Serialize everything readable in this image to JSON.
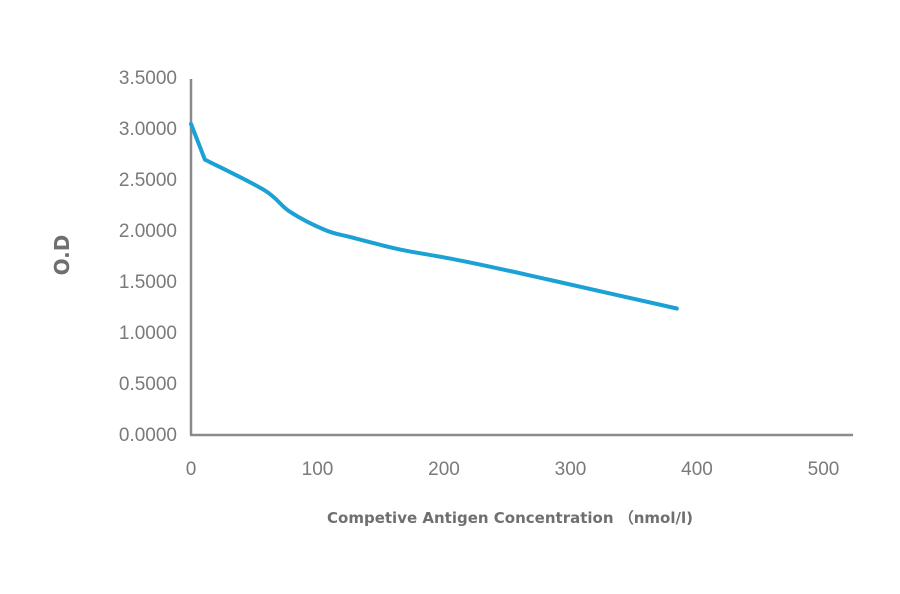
{
  "chart_data": {
    "type": "line",
    "title": "",
    "xlabel": "Competive Antigen Concentration （nmol/l)",
    "ylabel": "O.D",
    "xlim": [
      0,
      500
    ],
    "ylim": [
      0,
      3.5
    ],
    "x_ticks": [
      "0",
      "100",
      "200",
      "300",
      "400",
      "500"
    ],
    "y_ticks": [
      "0.0000",
      "0.5000",
      "1.0000",
      "1.5000",
      "2.0000",
      "2.5000",
      "3.0000",
      "3.5000"
    ],
    "grid": false,
    "legend": null,
    "series": [
      {
        "name": "O.D",
        "color": "#1ba1d4",
        "x": [
          0,
          11,
          58,
          78,
          106,
          126,
          165,
          205,
          244,
          284,
          384
        ],
        "y": [
          3.04,
          2.69,
          2.39,
          2.18,
          2.0,
          1.93,
          1.81,
          1.72,
          1.62,
          1.51,
          1.23
        ]
      }
    ]
  },
  "colors": {
    "line": "#1ba1d4",
    "axis": "#8a8a8a",
    "text": "#7a7a7a"
  }
}
